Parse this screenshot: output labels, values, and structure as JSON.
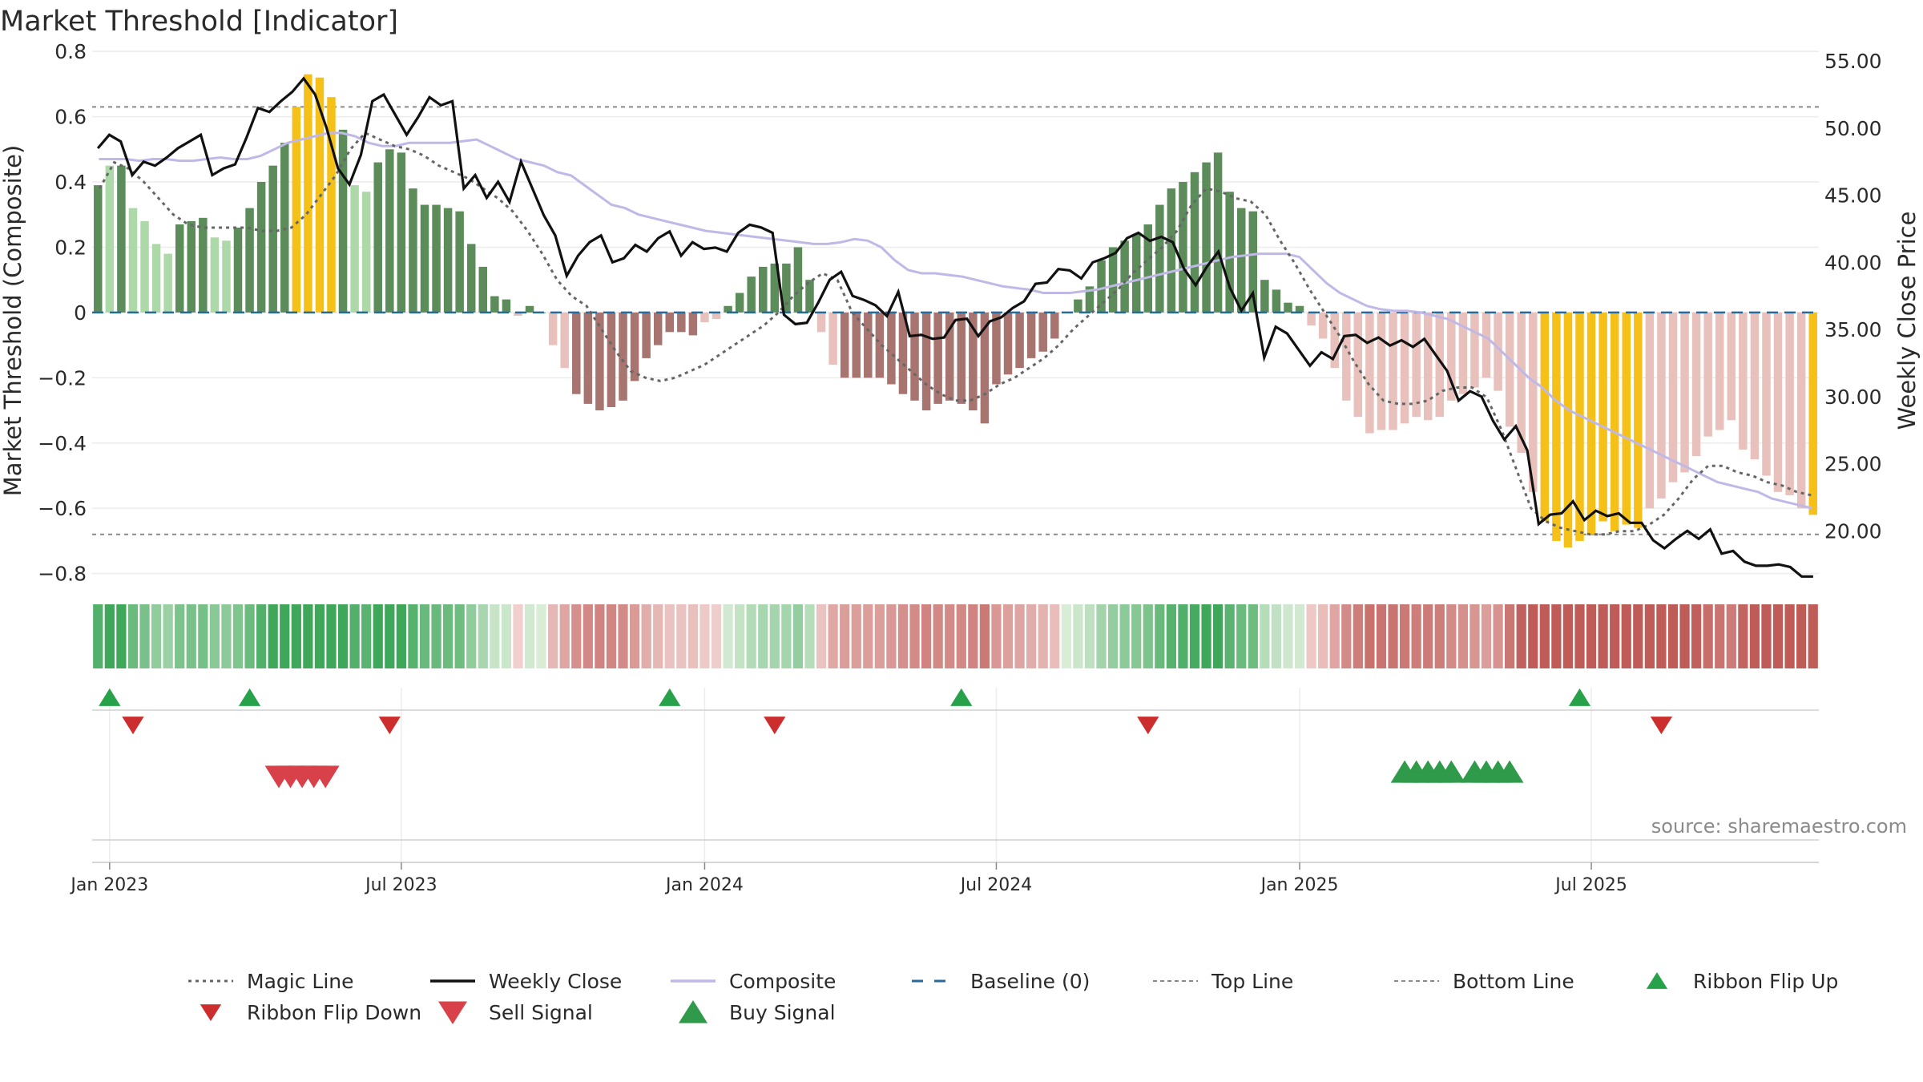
{
  "chart_data": {
    "type": "bar",
    "title": "Market Threshold [Indicator]",
    "ylabel": "Market Threshold (Composite)",
    "y2label": "Weekly Close Price",
    "ylim": [
      -0.85,
      0.82
    ],
    "y2lim": [
      15.6,
      56.2
    ],
    "yticks": [
      {
        "value": 0.8,
        "label": "0.8"
      },
      {
        "value": 0.6,
        "label": "0.6"
      },
      {
        "value": 0.4,
        "label": "0.4"
      },
      {
        "value": 0.2,
        "label": "0.2"
      },
      {
        "value": 0,
        "label": "0"
      },
      {
        "value": -0.2,
        "label": "−0.2"
      },
      {
        "value": -0.4,
        "label": "−0.4"
      },
      {
        "value": -0.6,
        "label": "−0.6"
      },
      {
        "value": -0.8,
        "label": "−0.8"
      }
    ],
    "y2ticks": [
      {
        "value": 55,
        "label": "55.00"
      },
      {
        "value": 50,
        "label": "50.00"
      },
      {
        "value": 45,
        "label": "45.00"
      },
      {
        "value": 40,
        "label": "40.00"
      },
      {
        "value": 35,
        "label": "35.00"
      },
      {
        "value": 30,
        "label": "30.00"
      },
      {
        "value": 25,
        "label": "25.00"
      },
      {
        "value": 20,
        "label": "20.00"
      }
    ],
    "xticks": [
      {
        "index": 1,
        "label": "Jan 2023"
      },
      {
        "index": 26,
        "label": "Jul 2023"
      },
      {
        "index": 52,
        "label": "Jan 2024"
      },
      {
        "index": 77,
        "label": "Jul 2024"
      },
      {
        "index": 103,
        "label": "Jan 2025"
      },
      {
        "index": 128,
        "label": "Jul 2025"
      }
    ],
    "top_line": 0.63,
    "bottom_line": -0.68,
    "baseline": 0,
    "grid": true,
    "legend_position": "bottom",
    "colors": {
      "pos_strong": "#5c8c5a",
      "pos_weak": "#add8a8",
      "neg_strong": "#a87470",
      "neg_weak": "#e9c1bc",
      "extreme": "#f5c118",
      "weekly_close": "#111111",
      "composite": "#c0b8e6",
      "magic_line": "#666666",
      "baseline": "#2a6a9a",
      "threshold_lines": "#8a8a8a",
      "buy": "#2e9a4a",
      "sell": "#d8404a",
      "flip_up": "#27a24a",
      "flip_down": "#cc2e2e"
    },
    "signals": {
      "ribbon_flip_up": [
        1,
        13,
        49,
        74,
        127
      ],
      "ribbon_flip_down": [
        3,
        25,
        58,
        90,
        134
      ],
      "sell": [
        15.5,
        16.5,
        17.5,
        18.5,
        19.5
      ],
      "buy": [
        112,
        113,
        114,
        115,
        116,
        118,
        119,
        120,
        121
      ]
    },
    "source": "source: sharemaestro.com",
    "legend": [
      {
        "key": "magic",
        "label": "Magic Line"
      },
      {
        "key": "close",
        "label": "Weekly Close"
      },
      {
        "key": "composite",
        "label": "Composite"
      },
      {
        "key": "baseline",
        "label": "Baseline (0)"
      },
      {
        "key": "top",
        "label": "Top Line"
      },
      {
        "key": "bottom",
        "label": "Bottom Line"
      },
      {
        "key": "flip_up",
        "label": "Ribbon Flip Up"
      },
      {
        "key": "flip_down",
        "label": "Ribbon Flip Down"
      },
      {
        "key": "sell",
        "label": "Sell Signal"
      },
      {
        "key": "buy",
        "label": "Buy Signal"
      }
    ],
    "bars": [
      0.39,
      0.45,
      0.45,
      0.32,
      0.28,
      0.21,
      0.18,
      0.27,
      0.28,
      0.29,
      0.23,
      0.22,
      0.26,
      0.32,
      0.4,
      0.45,
      0.52,
      0.63,
      0.73,
      0.72,
      0.66,
      0.56,
      0.39,
      0.37,
      0.46,
      0.5,
      0.49,
      0.38,
      0.33,
      0.33,
      0.32,
      0.31,
      0.21,
      0.14,
      0.05,
      0.04,
      -0.01,
      0.02,
      0,
      -0.1,
      -0.17,
      -0.25,
      -0.28,
      -0.3,
      -0.29,
      -0.27,
      -0.21,
      -0.14,
      -0.1,
      -0.06,
      -0.06,
      -0.07,
      -0.03,
      -0.02,
      0.02,
      0.06,
      0.11,
      0.14,
      0.15,
      0.15,
      0.2,
      0.1,
      -0.06,
      -0.16,
      -0.2,
      -0.2,
      -0.2,
      -0.2,
      -0.22,
      -0.25,
      -0.27,
      -0.3,
      -0.28,
      -0.27,
      -0.28,
      -0.3,
      -0.34,
      -0.22,
      -0.19,
      -0.17,
      -0.14,
      -0.12,
      -0.08,
      0,
      0.04,
      0.08,
      0.16,
      0.2,
      0.22,
      0.24,
      0.27,
      0.33,
      0.38,
      0.4,
      0.43,
      0.46,
      0.49,
      0.37,
      0.32,
      0.31,
      0.1,
      0.07,
      0.03,
      0.02,
      -0.04,
      -0.08,
      -0.17,
      -0.27,
      -0.32,
      -0.37,
      -0.36,
      -0.36,
      -0.34,
      -0.32,
      -0.33,
      -0.32,
      -0.27,
      -0.25,
      -0.23,
      -0.2,
      -0.24,
      -0.35,
      -0.43,
      -0.55,
      -0.64,
      -0.7,
      -0.72,
      -0.7,
      -0.68,
      -0.64,
      -0.67,
      -0.65,
      -0.66,
      -0.6,
      -0.57,
      -0.52,
      -0.49,
      -0.44,
      -0.38,
      -0.36,
      -0.33,
      -0.42,
      -0.45,
      -0.5,
      -0.55,
      -0.56,
      -0.6,
      -0.62
    ],
    "weekly_close": [
      48.5,
      49.5,
      49,
      46.5,
      47.5,
      47.2,
      47.8,
      48.5,
      49,
      49.5,
      46.5,
      47,
      47.3,
      49.3,
      51.5,
      51.2,
      52,
      52.7,
      53.7,
      52.5,
      50,
      47,
      45.8,
      48,
      52,
      52.5,
      51,
      49.5,
      50.8,
      52.3,
      51.7,
      52,
      45.5,
      46.5,
      44.8,
      46,
      44.5,
      47.5,
      45.5,
      43.5,
      42,
      39,
      40.5,
      41.5,
      42,
      40,
      40.3,
      41.3,
      40.8,
      41.8,
      42.3,
      40.5,
      41.5,
      41,
      41.1,
      40.8,
      42.2,
      42.8,
      42.6,
      42.2,
      36.1,
      35.4,
      35.5,
      37,
      38.7,
      39.3,
      37.5,
      37.2,
      36.8,
      36,
      37.8,
      34.5,
      34.6,
      34.3,
      34.4,
      35.7,
      35.8,
      34.5,
      35.6,
      35.9,
      36.6,
      37.1,
      38.4,
      38.5,
      39.5,
      39.4,
      38.8,
      40,
      40.3,
      40.7,
      41.8,
      42.2,
      41.6,
      41.9,
      41.5,
      39.5,
      38.3,
      39.7,
      40.8,
      38.1,
      36.4,
      37.7,
      32.9,
      35.2,
      34.7,
      33.5,
      32.3,
      33.3,
      32.8,
      34.5,
      34.6,
      34,
      34.4,
      33.8,
      34.2,
      33.7,
      34.3,
      33.1,
      31.9,
      29.7,
      30.4,
      30,
      28.2,
      26.8,
      27.8,
      26,
      20.5,
      21.2,
      21.3,
      22.2,
      20.8,
      21.5,
      21.1,
      21.3,
      20.6,
      20.6,
      19.3,
      18.7,
      19.4,
      20,
      19.4,
      20.1,
      18.3,
      18.5,
      17.7,
      17.4,
      17.4,
      17.5,
      17.3,
      16.6,
      16.6
    ],
    "composite": [
      0.47,
      0.47,
      0.47,
      0.465,
      0.47,
      0.47,
      0.465,
      0.465,
      0.47,
      0.475,
      0.47,
      0.47,
      0.48,
      0.5,
      0.52,
      0.53,
      0.54,
      0.55,
      0.55,
      0.54,
      0.52,
      0.51,
      0.51,
      0.52,
      0.52,
      0.52,
      0.52,
      0.525,
      0.53,
      0.51,
      0.49,
      0.47,
      0.46,
      0.45,
      0.43,
      0.42,
      0.39,
      0.36,
      0.33,
      0.32,
      0.3,
      0.29,
      0.28,
      0.27,
      0.26,
      0.25,
      0.245,
      0.24,
      0.235,
      0.23,
      0.225,
      0.22,
      0.215,
      0.21,
      0.21,
      0.215,
      0.225,
      0.22,
      0.2,
      0.16,
      0.13,
      0.12,
      0.12,
      0.115,
      0.11,
      0.1,
      0.09,
      0.08,
      0.075,
      0.07,
      0.06,
      0.06,
      0.06,
      0.065,
      0.07,
      0.08,
      0.09,
      0.1,
      0.11,
      0.12,
      0.13,
      0.14,
      0.15,
      0.16,
      0.17,
      0.175,
      0.18,
      0.18,
      0.18,
      0.17,
      0.13,
      0.09,
      0.06,
      0.04,
      0.02,
      0.01,
      0.005,
      0.005,
      0.0,
      -0.01,
      -0.02,
      -0.04,
      -0.06,
      -0.08,
      -0.12,
      -0.16,
      -0.2,
      -0.23,
      -0.27,
      -0.3,
      -0.32,
      -0.34,
      -0.36,
      -0.38,
      -0.4,
      -0.42,
      -0.44,
      -0.46,
      -0.48,
      -0.5,
      -0.52,
      -0.53,
      -0.54,
      -0.55,
      -0.57,
      -0.58,
      -0.59,
      -0.6
    ],
    "magic_line": [
      0.38,
      0.46,
      0.44,
      0.4,
      0.35,
      0.3,
      0.27,
      0.26,
      0.26,
      0.26,
      0.26,
      0.25,
      0.25,
      0.26,
      0.3,
      0.36,
      0.42,
      0.5,
      0.55,
      0.53,
      0.51,
      0.5,
      0.48,
      0.45,
      0.43,
      0.41,
      0.38,
      0.35,
      0.31,
      0.25,
      0.18,
      0.1,
      0.05,
      0.02,
      -0.05,
      -0.12,
      -0.18,
      -0.2,
      -0.21,
      -0.2,
      -0.18,
      -0.16,
      -0.13,
      -0.1,
      -0.07,
      -0.04,
      0.0,
      0.05,
      0.09,
      0.12,
      0.1,
      0.0,
      -0.05,
      -0.1,
      -0.14,
      -0.18,
      -0.22,
      -0.25,
      -0.27,
      -0.27,
      -0.25,
      -0.22,
      -0.2,
      -0.17,
      -0.14,
      -0.1,
      -0.05,
      -0.01,
      0.03,
      0.07,
      0.12,
      0.16,
      0.2,
      0.25,
      0.33,
      0.38,
      0.37,
      0.35,
      0.34,
      0.3,
      0.22,
      0.15,
      0.07,
      0.0,
      -0.07,
      -0.15,
      -0.22,
      -0.27,
      -0.28,
      -0.28,
      -0.27,
      -0.24,
      -0.23,
      -0.23,
      -0.26,
      -0.36,
      -0.48,
      -0.6,
      -0.64,
      -0.66,
      -0.67,
      -0.68,
      -0.68,
      -0.67,
      -0.67,
      -0.65,
      -0.62,
      -0.57,
      -0.51,
      -0.47,
      -0.47,
      -0.49,
      -0.5,
      -0.52,
      -0.53,
      -0.55,
      -0.56
    ]
  }
}
